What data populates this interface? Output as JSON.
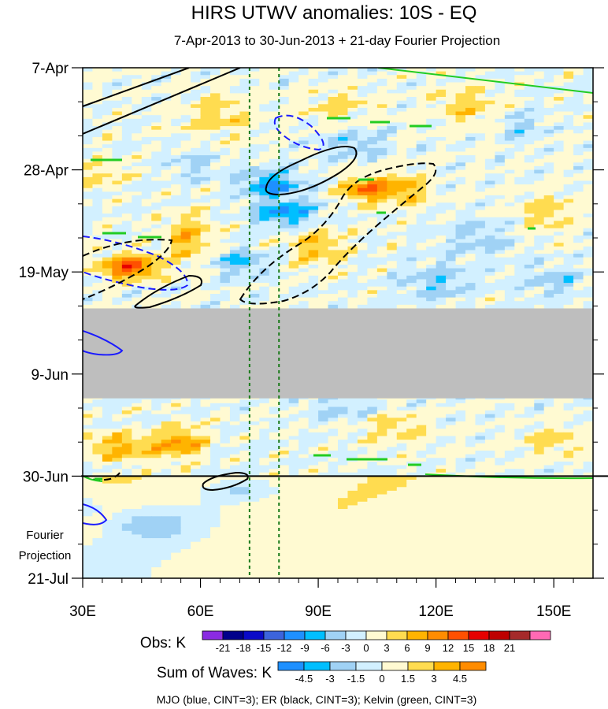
{
  "chart_data": {
    "type": "heatmap",
    "title": "HIRS UTWV anomalies: 10S - EQ",
    "subtitle": "7-Apr-2013 to 30-Jun-2013 + 21-day Fourier Projection",
    "x_axis": {
      "range": [
        30,
        160
      ],
      "ticks": [
        {
          "value": 30,
          "label": "30E"
        },
        {
          "value": 60,
          "label": "60E"
        },
        {
          "value": 90,
          "label": "90E"
        },
        {
          "value": 120,
          "label": "120E"
        },
        {
          "value": 150,
          "label": "150E"
        }
      ]
    },
    "y_axis": {
      "range_days": [
        0,
        105
      ],
      "direction": "time increases downward",
      "ticks": [
        {
          "day": 0,
          "label": "7-Apr"
        },
        {
          "day": 21,
          "label": "28-Apr"
        },
        {
          "day": 42,
          "label": "19-May"
        },
        {
          "day": 63,
          "label": "9-Jun"
        },
        {
          "day": 84,
          "label": "30-Jun"
        },
        {
          "day": 105,
          "label": "21-Jul"
        }
      ],
      "projection_label": [
        "Fourier",
        "Projection"
      ]
    },
    "projection_start_day": 84,
    "missing_data_band_days": [
      49.5,
      68
    ],
    "reference_longitudes": [
      72.5,
      80
    ],
    "obs_colorbar": {
      "label": "Obs: K",
      "levels": [
        "-21",
        "-18",
        "-15",
        "-12",
        "-9",
        "-6",
        "-3",
        "0",
        "3",
        "6",
        "9",
        "12",
        "15",
        "18",
        "21"
      ],
      "colors": [
        "#8a2be2",
        "#00008b",
        "#0a0ac8",
        "#3c64dc",
        "#1e90ff",
        "#00bfff",
        "#a0d2f5",
        "#d2f0ff",
        "#fffad2",
        "#ffdc50",
        "#ffb400",
        "#ff8c00",
        "#ff5000",
        "#e60000",
        "#be0000",
        "#a52a2a",
        "#ff69b4"
      ]
    },
    "waves_colorbar": {
      "label": "Sum of Waves: K",
      "levels": [
        "-4.5",
        "-3",
        "-1.5",
        "0",
        "1.5",
        "3",
        "4.5"
      ],
      "colors": [
        "#1e90ff",
        "#00bfff",
        "#a0d2f5",
        "#d2f0ff",
        "#fffad2",
        "#ffdc50",
        "#ffb400",
        "#ff8c00"
      ]
    },
    "legend_note": "MJO (blue, CINT=3); ER (black, CINT=3); Kelvin (green, CINT=3)",
    "grid": false
  }
}
